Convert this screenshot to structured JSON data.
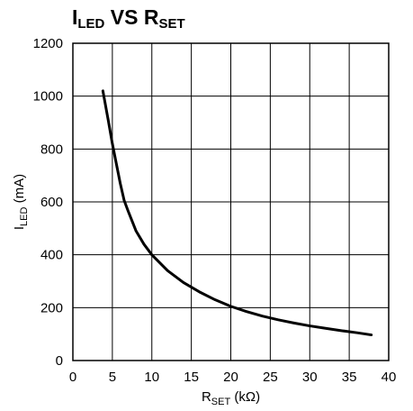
{
  "chart_data": {
    "type": "line",
    "title": {
      "main": "I",
      "main_sub": "LED",
      "mid": " VS R",
      "mid_sub": "SET"
    },
    "xlabel": {
      "main": "R",
      "sub": "SET",
      "unit": " (kΩ)"
    },
    "ylabel": {
      "main": "I",
      "sub": "LED",
      "unit": " (mA)"
    },
    "xlim": [
      0,
      40
    ],
    "ylim": [
      0,
      1200
    ],
    "x_ticks": [
      "0",
      "5",
      "10",
      "15",
      "20",
      "25",
      "30",
      "35",
      "40"
    ],
    "y_ticks": [
      "0",
      "200",
      "400",
      "600",
      "800",
      "1000",
      "1200"
    ],
    "grid": true,
    "series": [
      {
        "color": "#000000",
        "x": [
          3.8,
          4.5,
          5,
          5.5,
          6,
          6.5,
          7,
          8,
          9,
          10,
          12,
          14,
          16,
          18,
          20,
          22,
          24,
          26,
          28,
          30,
          32,
          34,
          36,
          37.8
        ],
        "y": [
          1020,
          905,
          820,
          745,
          670,
          605,
          565,
          490,
          440,
          400,
          340,
          295,
          260,
          230,
          205,
          185,
          168,
          154,
          142,
          131,
          122,
          113,
          105,
          97
        ]
      }
    ]
  }
}
